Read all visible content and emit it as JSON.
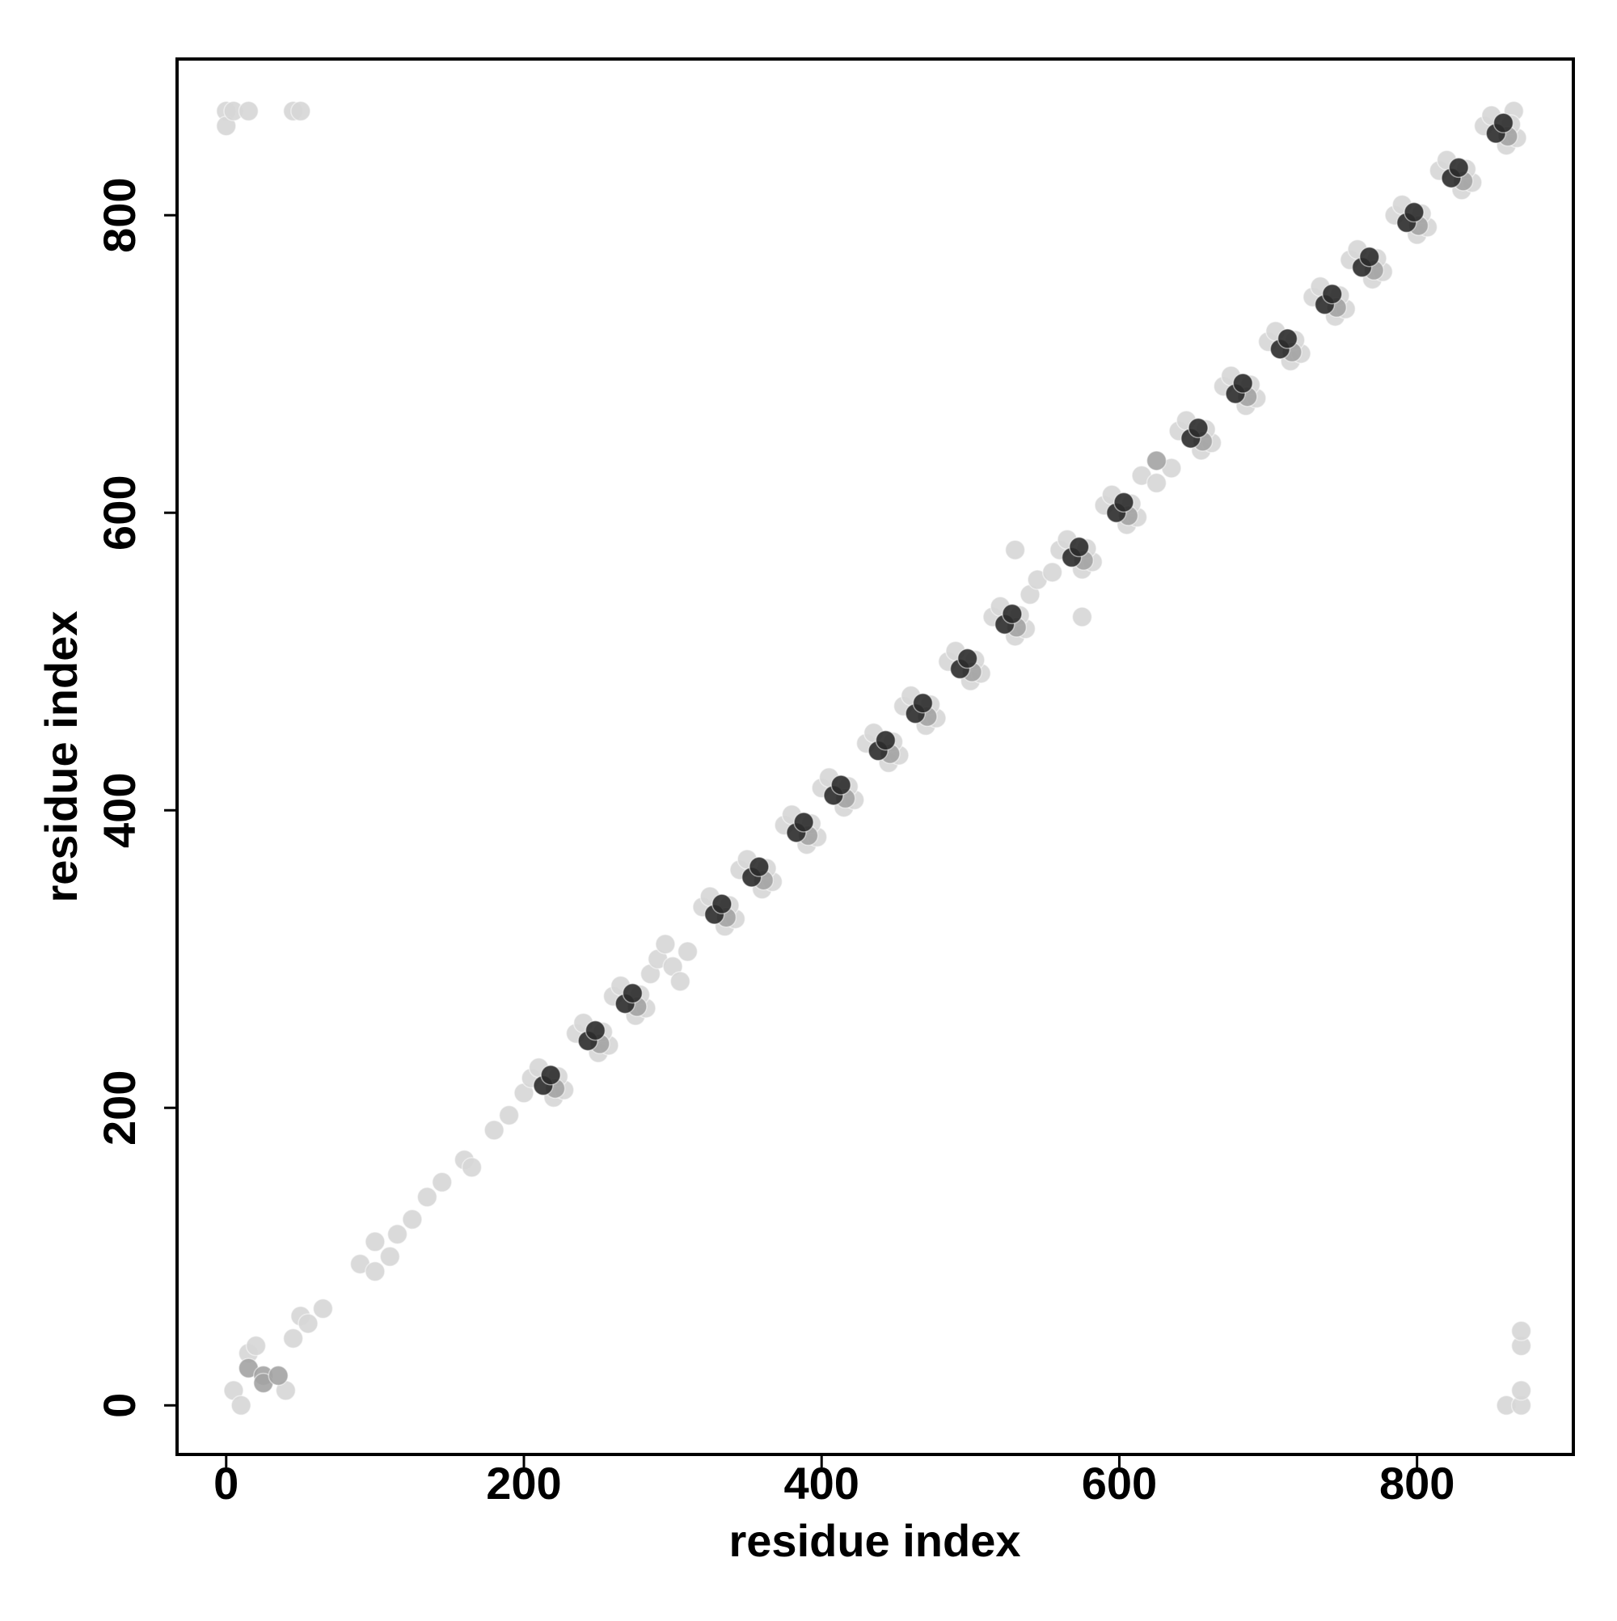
{
  "chart_data": {
    "type": "scatter",
    "xlabel": "residue index",
    "ylabel": "residue index",
    "xlim": [
      -33,
      905
    ],
    "ylim": [
      -33,
      905
    ],
    "xticks": [
      0,
      200,
      400,
      600,
      800
    ],
    "yticks": [
      0,
      200,
      400,
      600,
      800
    ],
    "series": [
      {
        "color": "#d6d6d6",
        "x": [
          0,
          0,
          5,
          15,
          45,
          50,
          5,
          10,
          15,
          20,
          40,
          45,
          50,
          55,
          65,
          90,
          100,
          100,
          110,
          115,
          125,
          135,
          145,
          160,
          165,
          180,
          190,
          200,
          285,
          290,
          300,
          305,
          310,
          295,
          540,
          545,
          555,
          575,
          530,
          615,
          625,
          635,
          860,
          870,
          870,
          870,
          870,
          865,
          205,
          210,
          220,
          227,
          223,
          235,
          240,
          250,
          257,
          253,
          260,
          265,
          275,
          282,
          278,
          320,
          325,
          335,
          342,
          338,
          345,
          350,
          360,
          367,
          363,
          375,
          380,
          390,
          397,
          393,
          400,
          405,
          415,
          422,
          418,
          430,
          435,
          445,
          452,
          448,
          455,
          460,
          470,
          477,
          473,
          485,
          490,
          500,
          507,
          503,
          515,
          520,
          530,
          537,
          533,
          560,
          565,
          575,
          582,
          578,
          590,
          595,
          605,
          612,
          608,
          640,
          645,
          655,
          662,
          658,
          670,
          675,
          685,
          692,
          688,
          700,
          705,
          715,
          722,
          718,
          730,
          735,
          745,
          752,
          748,
          755,
          760,
          770,
          777,
          773,
          785,
          790,
          800,
          807,
          803,
          815,
          820,
          830,
          837,
          833,
          845,
          850,
          860,
          867,
          863
        ],
        "values": [
          870,
          860,
          870,
          870,
          870,
          870,
          10,
          0,
          35,
          40,
          10,
          45,
          60,
          55,
          65,
          95,
          90,
          110,
          100,
          115,
          125,
          140,
          150,
          165,
          160,
          185,
          195,
          210,
          290,
          300,
          295,
          285,
          305,
          310,
          545,
          555,
          560,
          530,
          575,
          625,
          620,
          630,
          0,
          0,
          10,
          40,
          50,
          870,
          220,
          227,
          207,
          212,
          221,
          250,
          257,
          237,
          242,
          251,
          275,
          282,
          262,
          267,
          276,
          335,
          342,
          322,
          327,
          336,
          360,
          367,
          347,
          352,
          361,
          390,
          397,
          377,
          382,
          391,
          415,
          422,
          402,
          407,
          416,
          445,
          452,
          432,
          437,
          446,
          470,
          477,
          457,
          462,
          471,
          500,
          507,
          487,
          492,
          501,
          530,
          537,
          517,
          522,
          531,
          575,
          582,
          562,
          567,
          576,
          605,
          612,
          592,
          597,
          606,
          655,
          662,
          642,
          647,
          656,
          685,
          692,
          672,
          677,
          686,
          715,
          722,
          702,
          707,
          716,
          745,
          752,
          732,
          737,
          746,
          770,
          777,
          757,
          762,
          771,
          800,
          807,
          787,
          792,
          801,
          830,
          837,
          817,
          822,
          831,
          860,
          867,
          847,
          852,
          861
        ]
      },
      {
        "color": "#a3a3a3",
        "x": [
          221,
          251,
          276,
          336,
          361,
          391,
          416,
          446,
          471,
          501,
          531,
          576,
          606,
          656,
          686,
          716,
          746,
          771,
          801,
          831,
          861,
          15,
          25,
          25,
          35,
          625
        ],
        "values": [
          213,
          243,
          268,
          328,
          353,
          383,
          408,
          438,
          463,
          493,
          523,
          568,
          598,
          648,
          678,
          708,
          738,
          763,
          793,
          823,
          853,
          25,
          20,
          15,
          20,
          635
        ]
      },
      {
        "color": "#2b2b2b",
        "x": [
          213,
          218,
          243,
          248,
          268,
          273,
          328,
          333,
          353,
          358,
          383,
          388,
          408,
          413,
          438,
          443,
          463,
          468,
          493,
          498,
          523,
          528,
          568,
          573,
          598,
          603,
          648,
          653,
          678,
          683,
          708,
          713,
          738,
          743,
          763,
          768,
          793,
          798,
          823,
          828,
          853,
          858
        ],
        "values": [
          215,
          222,
          245,
          252,
          270,
          277,
          330,
          337,
          355,
          362,
          385,
          392,
          410,
          417,
          440,
          447,
          465,
          472,
          495,
          502,
          525,
          532,
          570,
          577,
          600,
          607,
          650,
          657,
          680,
          687,
          710,
          717,
          740,
          747,
          765,
          772,
          795,
          802,
          825,
          832,
          855,
          862
        ]
      }
    ]
  }
}
